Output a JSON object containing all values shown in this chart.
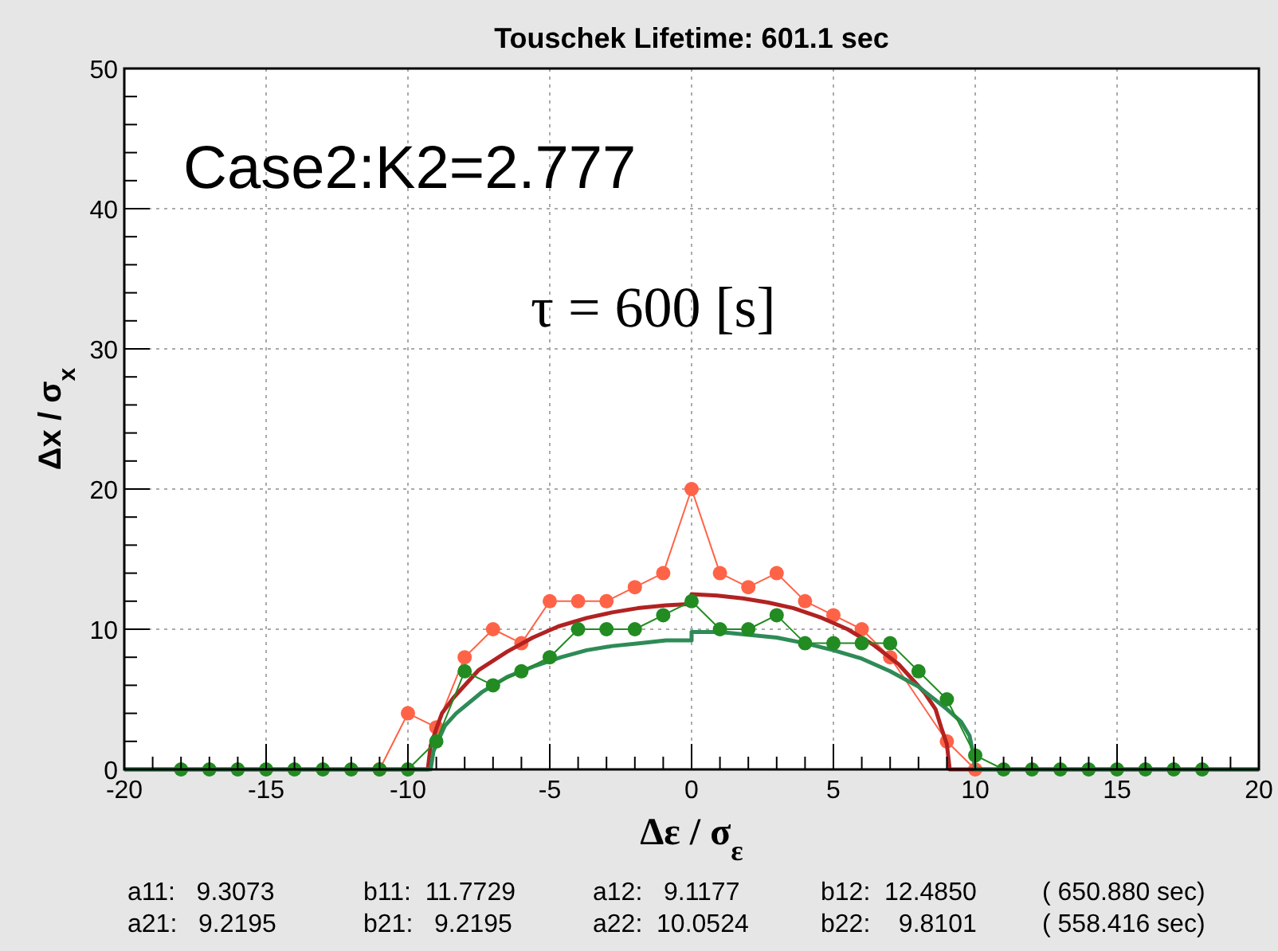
{
  "chart_data": {
    "type": "line",
    "title": "Touschek Lifetime: 601.1 sec",
    "xlabel": "Δε / σ$_{ε}$",
    "ylabel": "Δx / σ$_{x}$",
    "xlim": [
      -20,
      20
    ],
    "xticks": [
      -20,
      -15,
      -10,
      -5,
      0,
      5,
      10,
      15,
      20
    ],
    "ylim": [
      0,
      50
    ],
    "yticks": [
      0,
      10,
      20,
      30,
      40,
      50
    ],
    "grid": true,
    "marker": "circle",
    "annotations": [
      "Case2:K2=2.777",
      "τ = 600 [s]",
      "a11:   9.3073",
      "b11:  11.7729",
      "a12:   9.1177",
      "b12:  12.4850",
      "( 650.880 sec)",
      "a21:   9.2195",
      "b21:   9.2195",
      "a22:  10.0524",
      "b22:    9.8101",
      "( 558.416 sec)"
    ],
    "series": [
      {
        "color": "#ff6347",
        "x": [
          -11,
          -10,
          -9,
          -8,
          -7,
          -6,
          -5,
          -4,
          -3,
          -2,
          -1,
          0,
          1,
          2,
          3,
          4,
          5,
          6,
          7,
          9,
          10
        ],
        "values": [
          0,
          4,
          3,
          8,
          10,
          9,
          12,
          12,
          12,
          13,
          14,
          20,
          14,
          13,
          14,
          12,
          11,
          10,
          8,
          2,
          0
        ]
      },
      {
        "color": "#b22222",
        "marker": "none",
        "x": [
          -20,
          -9.3,
          -9.2,
          -9,
          -8.8,
          -8.4,
          -7.5,
          -6.5,
          -5.6,
          -4.7,
          -3.7,
          -2.8,
          -1.9,
          -0.9,
          0,
          0,
          0.9,
          1.8,
          2.7,
          3.6,
          4.6,
          5.5,
          6.4,
          7.3,
          8.2,
          8.6,
          8.8,
          9,
          9.1,
          20
        ],
        "values": [
          0,
          0,
          1.7,
          2.9,
          4,
          5.1,
          7.1,
          8.4,
          9.4,
          10.2,
          10.8,
          11.2,
          11.5,
          11.7,
          11.8,
          12.5,
          12.4,
          12.2,
          11.9,
          11.5,
          10.8,
          10,
          8.9,
          7.5,
          5.5,
          4.3,
          3,
          1.8,
          0,
          0
        ]
      },
      {
        "color": "#2e8b57",
        "marker": "none",
        "x": [
          -20,
          -9.2,
          -9.1,
          -8.9,
          -8.7,
          -8.3,
          -7.4,
          -6.5,
          -5.5,
          -4.6,
          -3.7,
          -2.8,
          -1.8,
          -0.9,
          0,
          0,
          1,
          2,
          3,
          4,
          5,
          6,
          7,
          8,
          9,
          9.5,
          9.8,
          9.9,
          10,
          20
        ],
        "values": [
          0,
          0,
          1.3,
          2.2,
          3.1,
          4,
          5.5,
          6.6,
          7.4,
          8,
          8.5,
          8.8,
          9,
          9.2,
          9.2,
          9.8,
          9.8,
          9.6,
          9.4,
          9,
          8.5,
          7.9,
          7,
          5.9,
          4.3,
          3.4,
          2.4,
          1.4,
          0,
          0
        ]
      },
      {
        "color": "#228b22",
        "x": [
          -18,
          -17,
          -16,
          -15,
          -14,
          -13,
          -12,
          -11,
          -10,
          -9,
          -8,
          -7,
          -6,
          -5,
          -4,
          -3,
          -2,
          -1,
          0,
          1,
          2,
          3,
          4,
          5,
          6,
          7,
          8,
          9,
          10,
          11,
          12,
          13,
          14,
          15,
          16,
          17,
          18
        ],
        "values": [
          0,
          0,
          0,
          0,
          0,
          0,
          0,
          0,
          0,
          2,
          7,
          6,
          7,
          8,
          10,
          10,
          10,
          11,
          12,
          10,
          10,
          11,
          9,
          9,
          9,
          9,
          7,
          5,
          1,
          0,
          0,
          0,
          0,
          0,
          0,
          0,
          0
        ]
      }
    ]
  }
}
